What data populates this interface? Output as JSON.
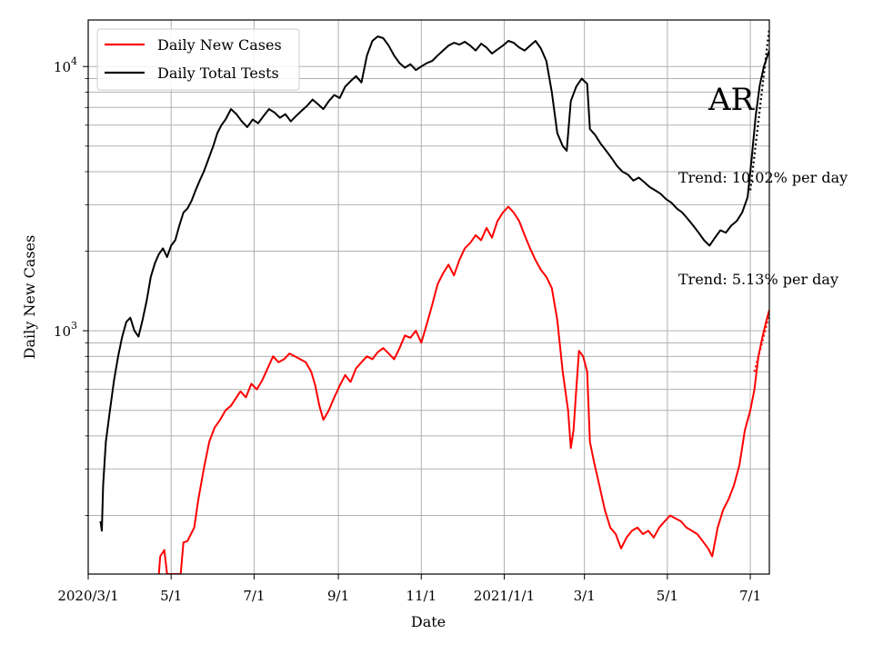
{
  "chart_data": {
    "type": "line",
    "title": "",
    "state_label": "AR",
    "xlabel": "Date",
    "ylabel": "Daily New Cases",
    "y_scale": "log",
    "ylim": [
      120,
      15000
    ],
    "xlim": [
      "2020-03-01",
      "2021-07-15"
    ],
    "grid": true,
    "legend_position": "top-left",
    "x_ticks": [
      {
        "date": "2020-03-01",
        "label": "2020/3/1"
      },
      {
        "date": "2020-05-01",
        "label": "5/1"
      },
      {
        "date": "2020-07-01",
        "label": "7/1"
      },
      {
        "date": "2020-09-01",
        "label": "9/1"
      },
      {
        "date": "2020-11-01",
        "label": "11/1"
      },
      {
        "date": "2021-01-01",
        "label": "2021/1/1"
      },
      {
        "date": "2021-03-01",
        "label": "3/1"
      },
      {
        "date": "2021-05-01",
        "label": "5/1"
      },
      {
        "date": "2021-07-01",
        "label": "7/1"
      }
    ],
    "y_major_ticks": [
      {
        "value": 1000,
        "base": "10",
        "exp": "3"
      },
      {
        "value": 10000,
        "base": "10",
        "exp": "4"
      }
    ],
    "y_minor_ticks": [
      200,
      300,
      400,
      500,
      600,
      700,
      800,
      900,
      2000,
      3000,
      4000,
      5000,
      6000,
      7000,
      8000,
      9000
    ],
    "series": [
      {
        "name": "Daily New Cases",
        "color": "#ff0000",
        "points": [
          [
            "2020-04-22",
            120
          ],
          [
            "2020-04-23",
            140
          ],
          [
            "2020-04-26",
            148
          ],
          [
            "2020-04-28",
            120
          ],
          [
            "2020-05-08",
            120
          ],
          [
            "2020-05-10",
            158
          ],
          [
            "2020-05-13",
            160
          ],
          [
            "2020-05-18",
            180
          ],
          [
            "2020-05-21",
            230
          ],
          [
            "2020-05-25",
            300
          ],
          [
            "2020-05-29",
            380
          ],
          [
            "2020-06-02",
            430
          ],
          [
            "2020-06-06",
            460
          ],
          [
            "2020-06-10",
            500
          ],
          [
            "2020-06-14",
            520
          ],
          [
            "2020-06-18",
            560
          ],
          [
            "2020-06-21",
            590
          ],
          [
            "2020-06-25",
            560
          ],
          [
            "2020-06-29",
            630
          ],
          [
            "2020-07-03",
            600
          ],
          [
            "2020-07-07",
            650
          ],
          [
            "2020-07-11",
            720
          ],
          [
            "2020-07-15",
            800
          ],
          [
            "2020-07-19",
            760
          ],
          [
            "2020-07-23",
            780
          ],
          [
            "2020-07-27",
            820
          ],
          [
            "2020-07-31",
            800
          ],
          [
            "2020-08-04",
            780
          ],
          [
            "2020-08-08",
            760
          ],
          [
            "2020-08-12",
            700
          ],
          [
            "2020-08-15",
            620
          ],
          [
            "2020-08-18",
            520
          ],
          [
            "2020-08-21",
            460
          ],
          [
            "2020-08-25",
            500
          ],
          [
            "2020-08-29",
            560
          ],
          [
            "2020-09-02",
            620
          ],
          [
            "2020-09-06",
            680
          ],
          [
            "2020-09-10",
            640
          ],
          [
            "2020-09-14",
            720
          ],
          [
            "2020-09-18",
            760
          ],
          [
            "2020-09-22",
            800
          ],
          [
            "2020-09-26",
            780
          ],
          [
            "2020-09-30",
            830
          ],
          [
            "2020-10-04",
            860
          ],
          [
            "2020-10-08",
            820
          ],
          [
            "2020-10-12",
            780
          ],
          [
            "2020-10-16",
            860
          ],
          [
            "2020-10-20",
            960
          ],
          [
            "2020-10-24",
            940
          ],
          [
            "2020-10-28",
            1000
          ],
          [
            "2020-11-01",
            900
          ],
          [
            "2020-11-05",
            1060
          ],
          [
            "2020-11-09",
            1250
          ],
          [
            "2020-11-13",
            1500
          ],
          [
            "2020-11-17",
            1650
          ],
          [
            "2020-11-21",
            1780
          ],
          [
            "2020-11-25",
            1620
          ],
          [
            "2020-11-29",
            1850
          ],
          [
            "2020-12-03",
            2050
          ],
          [
            "2020-12-07",
            2150
          ],
          [
            "2020-12-11",
            2300
          ],
          [
            "2020-12-15",
            2200
          ],
          [
            "2020-12-19",
            2450
          ],
          [
            "2020-12-23",
            2250
          ],
          [
            "2020-12-27",
            2600
          ],
          [
            "2020-12-31",
            2800
          ],
          [
            "2021-01-04",
            2950
          ],
          [
            "2021-01-08",
            2800
          ],
          [
            "2021-01-12",
            2600
          ],
          [
            "2021-01-16",
            2300
          ],
          [
            "2021-01-20",
            2050
          ],
          [
            "2021-01-24",
            1850
          ],
          [
            "2021-01-28",
            1700
          ],
          [
            "2021-02-01",
            1600
          ],
          [
            "2021-02-05",
            1450
          ],
          [
            "2021-02-09",
            1100
          ],
          [
            "2021-02-13",
            700
          ],
          [
            "2021-02-17",
            500
          ],
          [
            "2021-02-19",
            360
          ],
          [
            "2021-02-21",
            420
          ],
          [
            "2021-02-23",
            600
          ],
          [
            "2021-02-25",
            840
          ],
          [
            "2021-02-28",
            800
          ],
          [
            "2021-03-03",
            700
          ],
          [
            "2021-03-05",
            380
          ],
          [
            "2021-03-08",
            320
          ],
          [
            "2021-03-12",
            260
          ],
          [
            "2021-03-16",
            210
          ],
          [
            "2021-03-20",
            180
          ],
          [
            "2021-03-24",
            170
          ],
          [
            "2021-03-28",
            150
          ],
          [
            "2021-04-01",
            165
          ],
          [
            "2021-04-05",
            175
          ],
          [
            "2021-04-09",
            180
          ],
          [
            "2021-04-13",
            170
          ],
          [
            "2021-04-17",
            175
          ],
          [
            "2021-04-21",
            165
          ],
          [
            "2021-04-25",
            180
          ],
          [
            "2021-04-29",
            190
          ],
          [
            "2021-05-03",
            200
          ],
          [
            "2021-05-07",
            195
          ],
          [
            "2021-05-11",
            190
          ],
          [
            "2021-05-15",
            180
          ],
          [
            "2021-05-19",
            175
          ],
          [
            "2021-05-23",
            170
          ],
          [
            "2021-05-27",
            160
          ],
          [
            "2021-05-31",
            150
          ],
          [
            "2021-06-03",
            140
          ],
          [
            "2021-06-07",
            180
          ],
          [
            "2021-06-11",
            210
          ],
          [
            "2021-06-15",
            230
          ],
          [
            "2021-06-19",
            260
          ],
          [
            "2021-06-23",
            310
          ],
          [
            "2021-06-27",
            420
          ],
          [
            "2021-07-01",
            500
          ],
          [
            "2021-07-04",
            600
          ],
          [
            "2021-07-07",
            800
          ],
          [
            "2021-07-10",
            950
          ],
          [
            "2021-07-13",
            1100
          ],
          [
            "2021-07-15",
            1200
          ]
        ]
      },
      {
        "name": "Daily Total Tests",
        "color": "#000000",
        "points": [
          [
            "2020-03-10",
            190
          ],
          [
            "2020-03-11",
            175
          ],
          [
            "2020-03-12",
            260
          ],
          [
            "2020-03-14",
            380
          ],
          [
            "2020-03-17",
            500
          ],
          [
            "2020-03-20",
            650
          ],
          [
            "2020-03-23",
            800
          ],
          [
            "2020-03-26",
            950
          ],
          [
            "2020-03-29",
            1080
          ],
          [
            "2020-04-01",
            1120
          ],
          [
            "2020-04-04",
            1000
          ],
          [
            "2020-04-07",
            950
          ],
          [
            "2020-04-10",
            1100
          ],
          [
            "2020-04-13",
            1300
          ],
          [
            "2020-04-16",
            1600
          ],
          [
            "2020-04-19",
            1800
          ],
          [
            "2020-04-22",
            1950
          ],
          [
            "2020-04-25",
            2050
          ],
          [
            "2020-04-28",
            1900
          ],
          [
            "2020-05-01",
            2100
          ],
          [
            "2020-05-04",
            2200
          ],
          [
            "2020-05-07",
            2500
          ],
          [
            "2020-05-10",
            2800
          ],
          [
            "2020-05-13",
            2900
          ],
          [
            "2020-05-16",
            3100
          ],
          [
            "2020-05-19",
            3400
          ],
          [
            "2020-05-22",
            3700
          ],
          [
            "2020-05-25",
            4000
          ],
          [
            "2020-05-28",
            4400
          ],
          [
            "2020-06-01",
            5000
          ],
          [
            "2020-06-04",
            5600
          ],
          [
            "2020-06-07",
            6000
          ],
          [
            "2020-06-10",
            6300
          ],
          [
            "2020-06-14",
            6900
          ],
          [
            "2020-06-18",
            6600
          ],
          [
            "2020-06-22",
            6200
          ],
          [
            "2020-06-26",
            5900
          ],
          [
            "2020-06-30",
            6300
          ],
          [
            "2020-07-04",
            6100
          ],
          [
            "2020-07-08",
            6500
          ],
          [
            "2020-07-12",
            6900
          ],
          [
            "2020-07-16",
            6700
          ],
          [
            "2020-07-20",
            6400
          ],
          [
            "2020-07-24",
            6600
          ],
          [
            "2020-07-28",
            6200
          ],
          [
            "2020-08-01",
            6500
          ],
          [
            "2020-08-05",
            6800
          ],
          [
            "2020-08-09",
            7100
          ],
          [
            "2020-08-13",
            7500
          ],
          [
            "2020-08-17",
            7200
          ],
          [
            "2020-08-21",
            6900
          ],
          [
            "2020-08-25",
            7400
          ],
          [
            "2020-08-29",
            7800
          ],
          [
            "2020-09-02",
            7600
          ],
          [
            "2020-09-06",
            8400
          ],
          [
            "2020-09-10",
            8800
          ],
          [
            "2020-09-14",
            9200
          ],
          [
            "2020-09-18",
            8700
          ],
          [
            "2020-09-22",
            11000
          ],
          [
            "2020-09-26",
            12500
          ],
          [
            "2020-09-30",
            13000
          ],
          [
            "2020-10-04",
            12800
          ],
          [
            "2020-10-08",
            12000
          ],
          [
            "2020-10-12",
            11000
          ],
          [
            "2020-10-16",
            10300
          ],
          [
            "2020-10-20",
            9900
          ],
          [
            "2020-10-24",
            10200
          ],
          [
            "2020-10-28",
            9700
          ],
          [
            "2020-11-01",
            10000
          ],
          [
            "2020-11-05",
            10300
          ],
          [
            "2020-11-09",
            10500
          ],
          [
            "2020-11-13",
            11000
          ],
          [
            "2020-11-17",
            11500
          ],
          [
            "2020-11-21",
            12000
          ],
          [
            "2020-11-25",
            12300
          ],
          [
            "2020-11-29",
            12100
          ],
          [
            "2020-12-03",
            12400
          ],
          [
            "2020-12-07",
            12000
          ],
          [
            "2020-12-11",
            11500
          ],
          [
            "2020-12-15",
            12200
          ],
          [
            "2020-12-19",
            11800
          ],
          [
            "2020-12-23",
            11200
          ],
          [
            "2020-12-27",
            11600
          ],
          [
            "2020-12-31",
            12000
          ],
          [
            "2021-01-04",
            12500
          ],
          [
            "2021-01-08",
            12300
          ],
          [
            "2021-01-12",
            11800
          ],
          [
            "2021-01-16",
            11500
          ],
          [
            "2021-01-20",
            12000
          ],
          [
            "2021-01-24",
            12500
          ],
          [
            "2021-01-28",
            11700
          ],
          [
            "2021-02-01",
            10500
          ],
          [
            "2021-02-05",
            8000
          ],
          [
            "2021-02-09",
            5600
          ],
          [
            "2021-02-13",
            5000
          ],
          [
            "2021-02-16",
            4800
          ],
          [
            "2021-02-19",
            7400
          ],
          [
            "2021-02-23",
            8400
          ],
          [
            "2021-02-27",
            9000
          ],
          [
            "2021-03-03",
            8600
          ],
          [
            "2021-03-05",
            5800
          ],
          [
            "2021-03-09",
            5500
          ],
          [
            "2021-03-13",
            5100
          ],
          [
            "2021-03-17",
            4800
          ],
          [
            "2021-03-21",
            4500
          ],
          [
            "2021-03-25",
            4200
          ],
          [
            "2021-03-29",
            4000
          ],
          [
            "2021-04-02",
            3900
          ],
          [
            "2021-04-06",
            3700
          ],
          [
            "2021-04-10",
            3800
          ],
          [
            "2021-04-14",
            3650
          ],
          [
            "2021-04-18",
            3500
          ],
          [
            "2021-04-22",
            3400
          ],
          [
            "2021-04-26",
            3300
          ],
          [
            "2021-04-30",
            3150
          ],
          [
            "2021-05-04",
            3050
          ],
          [
            "2021-05-08",
            2900
          ],
          [
            "2021-05-12",
            2800
          ],
          [
            "2021-05-16",
            2650
          ],
          [
            "2021-05-20",
            2500
          ],
          [
            "2021-05-24",
            2350
          ],
          [
            "2021-05-28",
            2200
          ],
          [
            "2021-06-01",
            2100
          ],
          [
            "2021-06-05",
            2250
          ],
          [
            "2021-06-09",
            2400
          ],
          [
            "2021-06-13",
            2350
          ],
          [
            "2021-06-17",
            2500
          ],
          [
            "2021-06-21",
            2600
          ],
          [
            "2021-06-25",
            2800
          ],
          [
            "2021-06-29",
            3200
          ],
          [
            "2021-07-02",
            4500
          ],
          [
            "2021-07-05",
            6500
          ],
          [
            "2021-07-08",
            8500
          ],
          [
            "2021-07-11",
            10000
          ],
          [
            "2021-07-15",
            11500
          ]
        ]
      }
    ],
    "trend_lines": [
      {
        "series": "Daily Total Tests",
        "color": "#000000",
        "style": "dotted",
        "points": [
          [
            "2021-07-01",
            3400
          ],
          [
            "2021-07-15",
            14000
          ]
        ]
      },
      {
        "series": "Daily New Cases",
        "color": "#ff0000",
        "style": "dotted",
        "points": [
          [
            "2021-07-04",
            700
          ],
          [
            "2021-07-15",
            1150
          ]
        ]
      }
    ],
    "annotations": [
      {
        "id": "trend-tests",
        "text": "Trend: 10.02% per day"
      },
      {
        "id": "trend-cases",
        "text": "Trend: 5.13% per day"
      }
    ]
  }
}
